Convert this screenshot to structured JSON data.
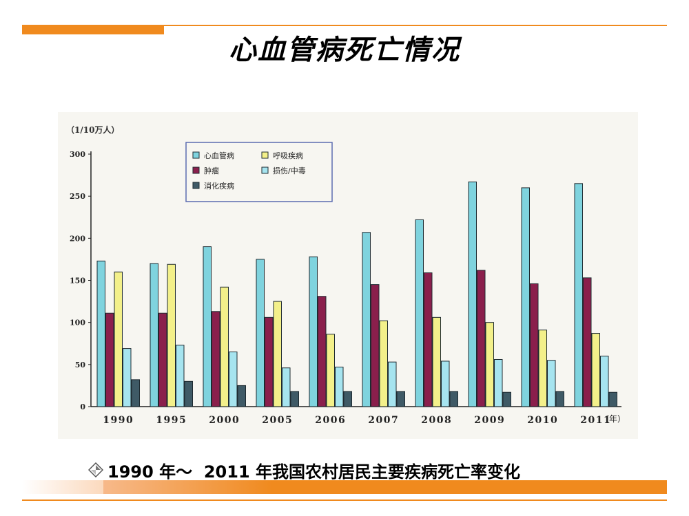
{
  "slide": {
    "title": "心血管病死亡情况",
    "caption": "1990 年～  2011 年我国农村居民主要疾病死亡率变化",
    "caption_icon": "diamond-arrow-bullet-icon"
  },
  "colors": {
    "accent": "#f08a1e",
    "cardio": "#7fd3de",
    "tumor": "#8a1f4c",
    "respiratory": "#f3f08a",
    "injury": "#a6e4ef",
    "digestive": "#3f5a66"
  },
  "chart_data": {
    "type": "bar",
    "unit_label": "（1/10万人）",
    "x_unit_label": "（年）",
    "categories": [
      "1990",
      "1995",
      "2000",
      "2005",
      "2006",
      "2007",
      "2008",
      "2009",
      "2010",
      "2011"
    ],
    "ylim": [
      0,
      300
    ],
    "yticks": [
      "0",
      "50",
      "100",
      "150",
      "200",
      "250",
      "300"
    ],
    "legend_position": "top-left",
    "grid": false,
    "series": [
      {
        "name": "心血管病",
        "color": "#7fd3de",
        "values": [
          173,
          170,
          190,
          175,
          178,
          207,
          222,
          267,
          260,
          265
        ]
      },
      {
        "name": "肿瘤",
        "color": "#8a1f4c",
        "values": [
          111,
          111,
          113,
          106,
          131,
          145,
          159,
          162,
          146,
          153
        ]
      },
      {
        "name": "呼吸疾病",
        "color": "#f3f08a",
        "values": [
          160,
          169,
          142,
          125,
          86,
          102,
          106,
          100,
          91,
          87
        ]
      },
      {
        "name": "损伤/中毒",
        "color": "#a6e4ef",
        "values": [
          69,
          73,
          65,
          46,
          47,
          53,
          54,
          56,
          55,
          60
        ]
      },
      {
        "name": "消化疾病",
        "color": "#3f5a66",
        "values": [
          32,
          30,
          25,
          18,
          18,
          18,
          18,
          17,
          18,
          17
        ]
      }
    ]
  }
}
